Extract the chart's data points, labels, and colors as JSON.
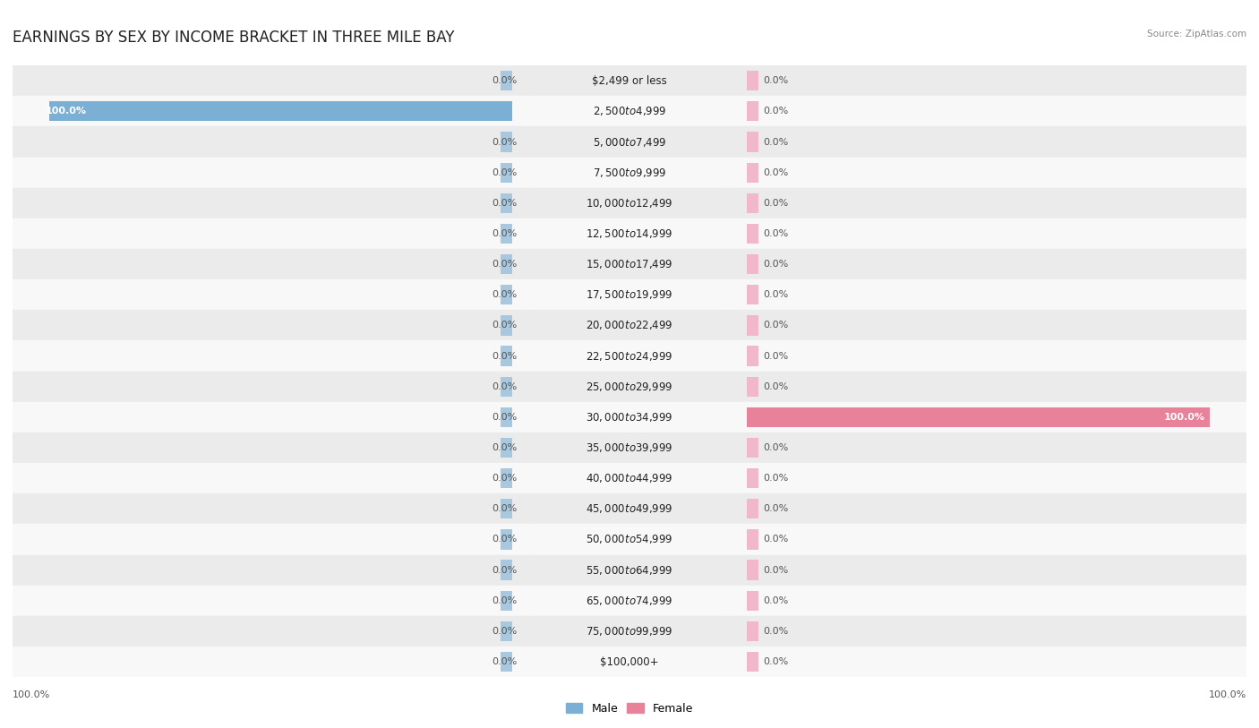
{
  "title": "EARNINGS BY SEX BY INCOME BRACKET IN THREE MILE BAY",
  "source": "Source: ZipAtlas.com",
  "categories": [
    "$2,499 or less",
    "$2,500 to $4,999",
    "$5,000 to $7,499",
    "$7,500 to $9,999",
    "$10,000 to $12,499",
    "$12,500 to $14,999",
    "$15,000 to $17,499",
    "$17,500 to $19,999",
    "$20,000 to $22,499",
    "$22,500 to $24,999",
    "$25,000 to $29,999",
    "$30,000 to $34,999",
    "$35,000 to $39,999",
    "$40,000 to $44,999",
    "$45,000 to $49,999",
    "$50,000 to $54,999",
    "$55,000 to $64,999",
    "$65,000 to $74,999",
    "$75,000 to $99,999",
    "$100,000+"
  ],
  "male_values": [
    0.0,
    100.0,
    0.0,
    0.0,
    0.0,
    0.0,
    0.0,
    0.0,
    0.0,
    0.0,
    0.0,
    0.0,
    0.0,
    0.0,
    0.0,
    0.0,
    0.0,
    0.0,
    0.0,
    0.0
  ],
  "female_values": [
    0.0,
    0.0,
    0.0,
    0.0,
    0.0,
    0.0,
    0.0,
    0.0,
    0.0,
    0.0,
    0.0,
    100.0,
    0.0,
    0.0,
    0.0,
    0.0,
    0.0,
    0.0,
    0.0,
    0.0
  ],
  "male_color": "#7bafd4",
  "female_color": "#e8829a",
  "male_color_light": "#a8c8e0",
  "female_color_light": "#f0b8c8",
  "row_bg_odd": "#ebebeb",
  "row_bg_even": "#f8f8f8",
  "title_fontsize": 12,
  "label_fontsize": 8.5,
  "value_fontsize": 8,
  "bar_height": 0.65,
  "background_color": "#ffffff",
  "stub_size": 2.5,
  "max_val": 100
}
